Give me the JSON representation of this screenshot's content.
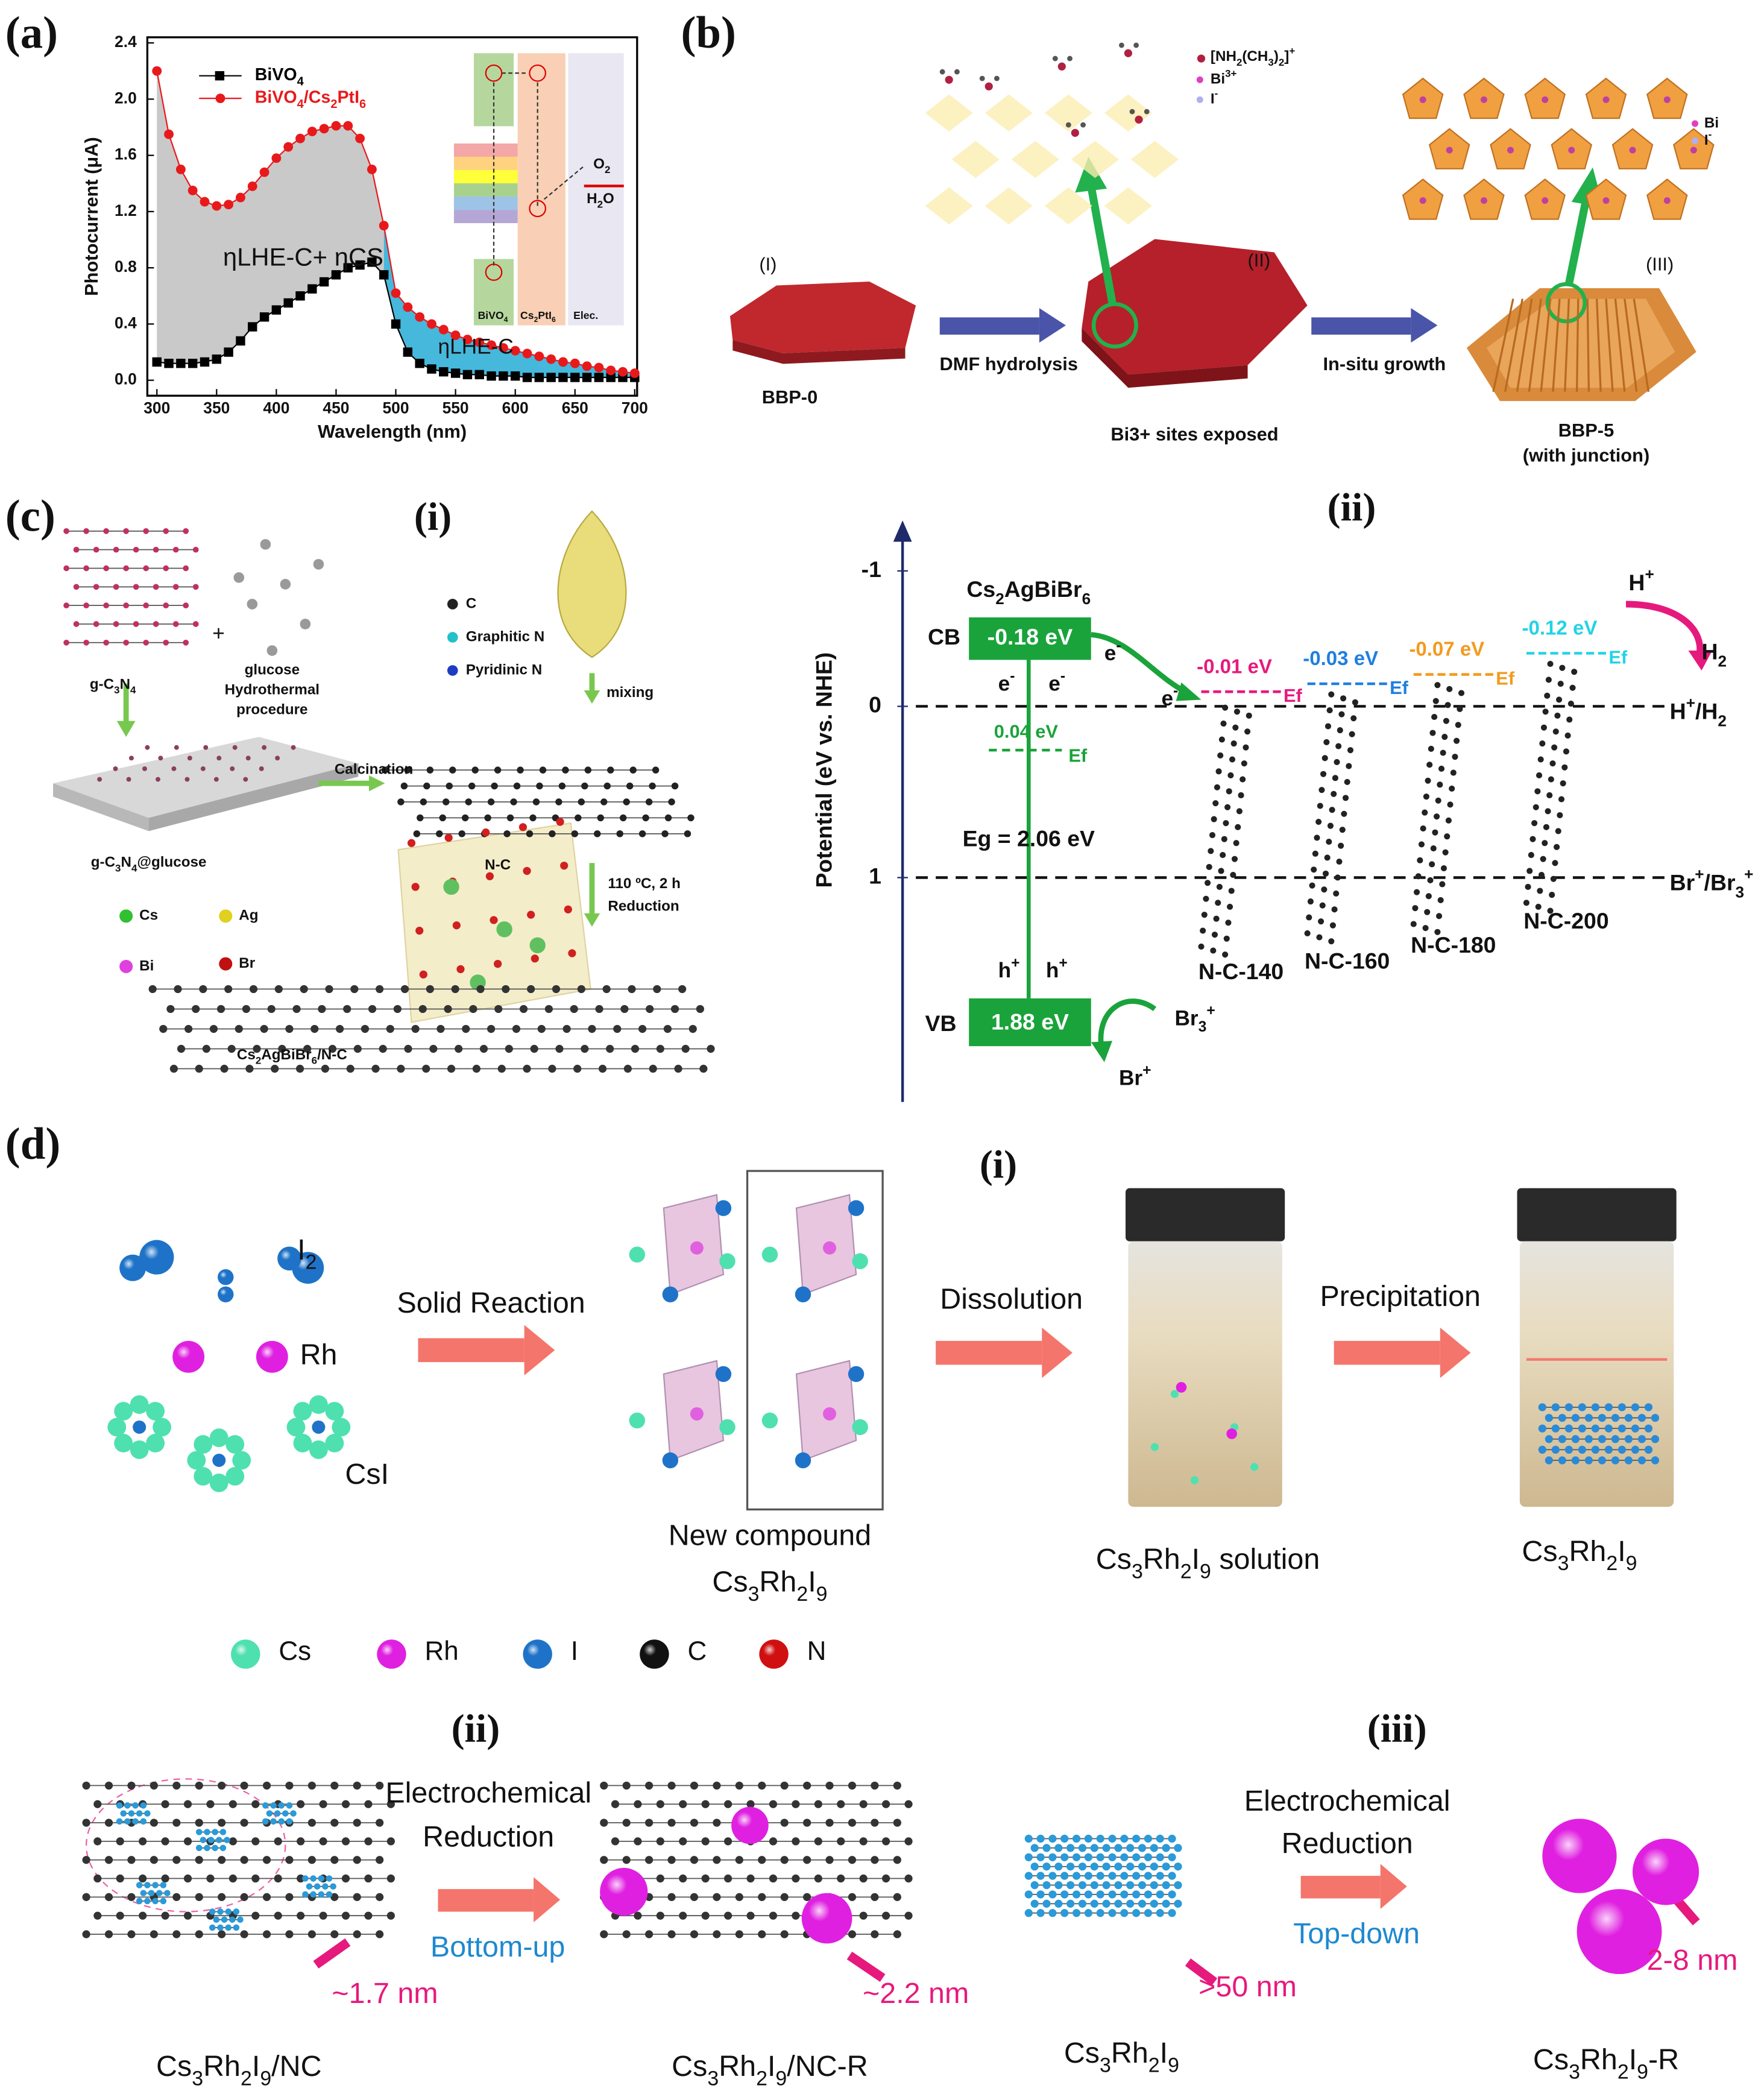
{
  "chart_data": {
    "type": "line",
    "panel_label": "(a)",
    "xlabel": "Wavelength (nm)",
    "ylabel": "Photocurrent (μA)",
    "xlim": [
      292,
      702
    ],
    "ylim": [
      -0.11,
      2.44
    ],
    "xticks": [
      300,
      350,
      400,
      450,
      500,
      550,
      600,
      650,
      700
    ],
    "yticks": [
      {
        "value": 0,
        "label": "0.0"
      },
      0.4,
      0.8,
      1.2,
      1.6,
      {
        "value": 2,
        "label": "2.0"
      },
      2.4
    ],
    "x": [
      300,
      310,
      320,
      330,
      340,
      350,
      360,
      370,
      380,
      390,
      400,
      410,
      420,
      430,
      440,
      450,
      460,
      470,
      480,
      490,
      500,
      510,
      520,
      530,
      540,
      550,
      560,
      570,
      580,
      590,
      600,
      610,
      620,
      630,
      640,
      650,
      660,
      670,
      680,
      690,
      700
    ],
    "series": [
      {
        "name": "BiVO4",
        "color": "#000000",
        "marker": "square",
        "values": [
          0.13,
          0.12,
          0.12,
          0.12,
          0.13,
          0.15,
          0.2,
          0.28,
          0.38,
          0.45,
          0.5,
          0.55,
          0.6,
          0.65,
          0.7,
          0.75,
          0.8,
          0.82,
          0.84,
          0.75,
          0.4,
          0.2,
          0.12,
          0.08,
          0.06,
          0.05,
          0.04,
          0.04,
          0.03,
          0.03,
          0.03,
          0.02,
          0.02,
          0.02,
          0.02,
          0.02,
          0.02,
          0.02,
          0.02,
          0.02,
          0.02
        ]
      },
      {
        "name": "BiVO4/Cs2PtI6",
        "color": "#e8191b",
        "marker": "circle",
        "values": [
          2.2,
          1.75,
          1.5,
          1.35,
          1.27,
          1.24,
          1.25,
          1.3,
          1.38,
          1.48,
          1.58,
          1.66,
          1.72,
          1.77,
          1.79,
          1.81,
          1.81,
          1.72,
          1.5,
          1.1,
          0.62,
          0.52,
          0.45,
          0.4,
          0.36,
          0.32,
          0.29,
          0.27,
          0.25,
          0.23,
          0.21,
          0.19,
          0.17,
          0.15,
          0.13,
          0.12,
          0.1,
          0.09,
          0.07,
          0.06,
          0.05
        ]
      }
    ],
    "annotations": [
      "ηLHE-C+ ηCS",
      "ηLHE-C"
    ],
    "inset_labels": [
      "BiVO4",
      "Cs2PtI6",
      "Elec.",
      "O2",
      "H2O"
    ]
  },
  "panel_b": {
    "label": "(b)",
    "stages": [
      "(I)",
      "(II)",
      "(III)"
    ],
    "names": [
      "BBP-0",
      "Bi3+ sites exposed",
      "BBP-5",
      "(with junction)"
    ],
    "steps": [
      "DMF hydrolysis",
      "In-situ growth"
    ],
    "legend_left": [
      "[NH2(CH3)2]+",
      "Bi3+",
      "I-"
    ],
    "legend_right": [
      "Bi",
      "I-"
    ]
  },
  "panel_c": {
    "label": "(c)",
    "sub_i": "(i)",
    "sub_ii": "(ii)",
    "synthesis": {
      "g_c3n4": "g-C3N4",
      "plus": "+",
      "glucose": "glucose",
      "hydrothermal": "Hydrothermal",
      "procedure": "procedure",
      "composite": "g-C3N4@glucose",
      "calcination": "Calcination",
      "nc": "N-C",
      "legend1": [
        "C",
        "Graphitic N",
        "Pyridinic N"
      ],
      "mixing": "mixing",
      "conditions": "110 ºC, 2 h",
      "reduction": "Reduction",
      "legend2": [
        "Cs",
        "Ag",
        "Bi",
        "Br"
      ],
      "product": "Cs2AgBiBr6/N-C"
    },
    "energy": {
      "ylabel": "Potential (eV vs. NHE)",
      "yticks": [
        "-1",
        "0",
        "1"
      ],
      "material": "Cs2AgBiBr6",
      "cb": "CB",
      "cb_value": "-0.18 eV",
      "vb": "VB",
      "vb_value": "1.88 eV",
      "ef_value": "0.04 eV",
      "ef": "Ef",
      "gap": "Eg = 2.06 eV",
      "electron": "e-",
      "hole": "h+",
      "h_plus": "H+",
      "h2": "H2",
      "h_couple": "H+/H2",
      "br_couple": "Br+/Br3+",
      "br3": "Br3+",
      "br": "Br+",
      "samples": [
        {
          "name": "N-C-140",
          "level": "-0.01 eV",
          "color": "#e6197d"
        },
        {
          "name": "N-C-160",
          "level": "-0.03 eV",
          "color": "#1e7fe0"
        },
        {
          "name": "N-C-180",
          "level": "-0.07 eV",
          "color": "#f39a1e"
        },
        {
          "name": "N-C-200",
          "level": "-0.12 eV",
          "color": "#22d3e6"
        }
      ]
    }
  },
  "panel_d": {
    "label": "(d)",
    "reactants": [
      "I2",
      "Rh",
      "CsI"
    ],
    "step1": "Solid Reaction",
    "compound": [
      "New compound",
      "Cs3Rh2I9"
    ],
    "sub_i": "(i)",
    "step2": "Dissolution",
    "step3": "Precipitation",
    "solution": "Cs3Rh2I9 solution",
    "precipitate": "Cs3Rh2I9",
    "legend": [
      {
        "name": "Cs",
        "color": "#4fe0b0"
      },
      {
        "name": "Rh",
        "color": "#e020e0"
      },
      {
        "name": "I",
        "color": "#1e73c8"
      },
      {
        "name": "C",
        "color": "#111111"
      },
      {
        "name": "N",
        "color": "#d01010"
      }
    ],
    "sub_ii": "(ii)",
    "sub_iii": "(iii)",
    "reduction": [
      "Electrochemical",
      "Reduction"
    ],
    "bottom_up": "Bottom-up",
    "top_down": "Top-down",
    "sizes": [
      "~1.7 nm",
      "~2.2 nm",
      ">50 nm",
      "2-8 nm"
    ],
    "captions": [
      "Cs3Rh2I9/NC",
      "Cs3Rh2I9/NC-R",
      "Cs3Rh2I9",
      "Cs3Rh2I9-R"
    ]
  }
}
